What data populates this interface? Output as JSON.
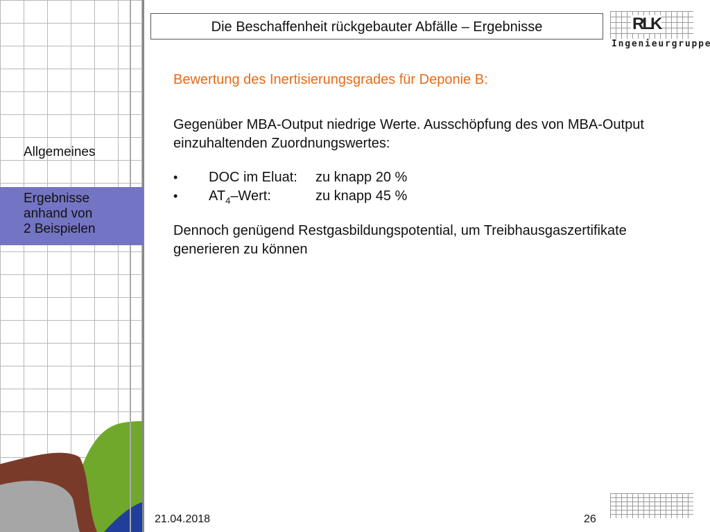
{
  "header": {
    "title": "Die Beschaffenheit rückgebauter Abfälle – Ergebnisse"
  },
  "logo": {
    "mark": "RLK",
    "subtitle": "Ingenieurgruppe"
  },
  "sidebar": {
    "items": [
      {
        "lines": [
          "Allgemeines"
        ],
        "active": false
      },
      {
        "lines": [
          "Ergebnisse",
          "anhand von",
          "2 Beispielen"
        ],
        "active": true
      }
    ]
  },
  "content": {
    "heading": "Bewertung des Inertisierungsgrades für Deponie B:",
    "paragraph1": "Gegenüber MBA-Output niedrige Werte. Ausschöpfung des von MBA-Output einzuhaltenden Zuordnungswertes:",
    "bullets": [
      {
        "key": "DOC im Eluat:",
        "value": "zu knapp 20 %"
      },
      {
        "key_prefix": "AT",
        "key_sub": "4",
        "key_suffix": "–Wert:",
        "value": "zu knapp 45 %"
      }
    ],
    "paragraph2": "Dennoch genügend Restgasbildungspotential, um Treibhausgaszertifikate generieren zu können"
  },
  "footer": {
    "date": "21.04.2018",
    "page_number": "26"
  },
  "colors": {
    "heading": "#e56b17",
    "nav_active": "#7474c4",
    "curve_green": "#6fa82a",
    "curve_brown": "#7a3a2a",
    "curve_gray": "#a6a6a6",
    "curve_blue": "#1f3f9a"
  }
}
